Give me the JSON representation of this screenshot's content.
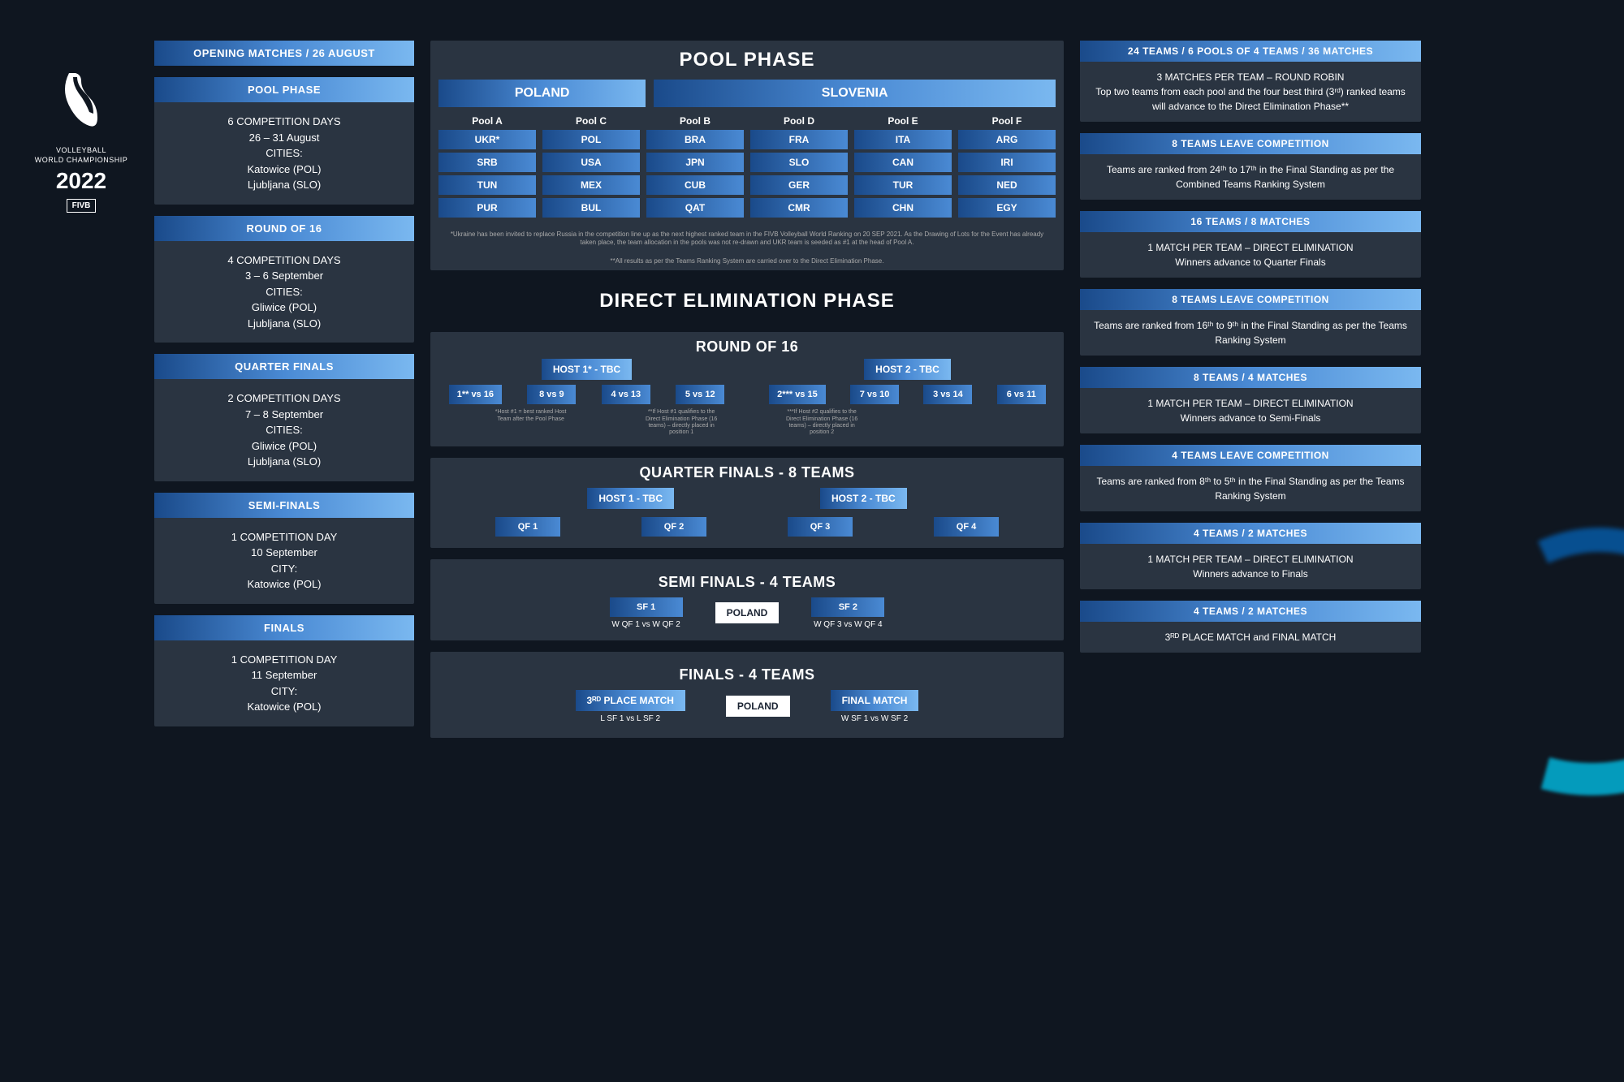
{
  "colors": {
    "bg": "#0f1620",
    "panel": "#2a3441",
    "grad_start": "#1a4a8a",
    "grad_mid": "#4a8ad4",
    "grad_end": "#7ab8f0",
    "glow": "#00d4ff"
  },
  "logo": {
    "line1": "VOLLEYBALL",
    "line2": "WORLD CHAMPIONSHIP",
    "year": "2022",
    "org": "FIVB"
  },
  "left": [
    {
      "h": "OPENING MATCHES / 26 AUGUST",
      "b": ""
    },
    {
      "h": "POOL PHASE",
      "b": "6 COMPETITION DAYS\n26 – 31 August\nCITIES:\nKatowice (POL)\nLjubljana (SLO)"
    },
    {
      "h": "ROUND OF 16",
      "b": "4 COMPETITION DAYS\n3 – 6 September\nCITIES:\nGliwice (POL)\nLjubljana (SLO)"
    },
    {
      "h": "QUARTER FINALS",
      "b": "2 COMPETITION DAYS\n7 – 8 September\nCITIES:\nGliwice (POL)\nLjubljana (SLO)"
    },
    {
      "h": "SEMI-FINALS",
      "b": "1 COMPETITION DAY\n10 September\nCITY:\nKatowice (POL)"
    },
    {
      "h": "FINALS",
      "b": "1 COMPETITION DAY\n11 September\nCITY:\nKatowice (POL)"
    }
  ],
  "right": [
    {
      "h": "24 TEAMS / 6 POOLS OF 4 TEAMS / 36 MATCHES",
      "b": "3 MATCHES PER TEAM – ROUND ROBIN\nTop two teams from each pool and the four best third (3ʳᵈ) ranked teams will advance to the Direct Elimination Phase**"
    },
    {
      "h": "8 TEAMS LEAVE COMPETITION",
      "b": "Teams are ranked from 24ᵗʰ to 17ᵗʰ in the Final Standing as per the Combined Teams Ranking System"
    },
    {
      "h": "16 TEAMS / 8 MATCHES",
      "b": "1 MATCH PER TEAM – DIRECT ELIMINATION\nWinners advance to Quarter Finals"
    },
    {
      "h": "8 TEAMS LEAVE COMPETITION",
      "b": "Teams are ranked from 16ᵗʰ to 9ᵗʰ in the Final Standing as per the Teams Ranking System"
    },
    {
      "h": "8 TEAMS / 4 MATCHES",
      "b": "1 MATCH PER TEAM – DIRECT ELIMINATION\nWinners advance to Semi-Finals"
    },
    {
      "h": "4 TEAMS LEAVE COMPETITION",
      "b": "Teams are ranked from 8ᵗʰ to 5ᵗʰ in the Final Standing as per the Teams Ranking System"
    },
    {
      "h": "4 TEAMS / 2 MATCHES",
      "b": "1 MATCH PER TEAM – DIRECT ELIMINATION\nWinners advance to Finals"
    },
    {
      "h": "4 TEAMS / 2 MATCHES",
      "b": "3ᴿᴰ PLACE MATCH and FINAL MATCH"
    }
  ],
  "pool": {
    "title": "POOL PHASE",
    "hosts": [
      "POLAND",
      "SLOVENIA"
    ],
    "host_split": [
      2,
      4
    ],
    "pools": [
      {
        "name": "Pool A",
        "teams": [
          "UKR*",
          "SRB",
          "TUN",
          "PUR"
        ]
      },
      {
        "name": "Pool C",
        "teams": [
          "POL",
          "USA",
          "MEX",
          "BUL"
        ]
      },
      {
        "name": "Pool B",
        "teams": [
          "BRA",
          "JPN",
          "CUB",
          "QAT"
        ]
      },
      {
        "name": "Pool D",
        "teams": [
          "FRA",
          "SLO",
          "GER",
          "CMR"
        ]
      },
      {
        "name": "Pool E",
        "teams": [
          "ITA",
          "CAN",
          "TUR",
          "CHN"
        ]
      },
      {
        "name": "Pool F",
        "teams": [
          "ARG",
          "IRI",
          "NED",
          "EGY"
        ]
      }
    ],
    "note1": "*Ukraine has been invited to replace Russia in the competition line up as the next highest ranked team in the FIVB Volleyball World Ranking on 20 SEP 2021. As the Drawing of Lots for the Event has already taken place, the team allocation in the pools was not re-drawn and UKR team is seeded as #1 at the head of Pool A.",
    "note2": "**All results as per the Teams Ranking System are carried over to the Direct Elimination Phase."
  },
  "elim": {
    "title": "DIRECT ELIMINATION PHASE",
    "r16": {
      "title": "ROUND OF 16",
      "host1": "HOST 1* - TBC",
      "host2": "HOST 2 - TBC",
      "m1": [
        "1** vs 16",
        "8 vs 9",
        "4 vs 13",
        "5 vs 12"
      ],
      "m2": [
        "2*** vs 15",
        "7 vs 10",
        "3 vs 14",
        "6 vs 11"
      ],
      "n1": "*Host #1 = best ranked Host Team after the Pool Phase",
      "n2": "**If Host #1 qualifies to the Direct Elimination Phase (16 teams) – directly placed in position 1",
      "n3": "***If Host #2 qualifies to the Direct Elimination Phase (16 teams) – directly placed in position 2"
    },
    "qf": {
      "title": "QUARTER FINALS - 8 TEAMS",
      "host1": "HOST 1 - TBC",
      "host2": "HOST 2 - TBC",
      "m": [
        "QF 1",
        "QF 2",
        "QF 3",
        "QF 4"
      ]
    },
    "sf": {
      "title": "SEMI FINALS - 4 TEAMS",
      "loc": "POLAND",
      "m": [
        "SF 1",
        "SF 2"
      ],
      "lbl": [
        "W QF 1 vs W QF 2",
        "W QF 3 vs W QF 4"
      ]
    },
    "fin": {
      "title": "FINALS - 4 TEAMS",
      "loc": "POLAND",
      "m": [
        "3ᴿᴰ PLACE MATCH",
        "FINAL MATCH"
      ],
      "lbl": [
        "L SF 1 vs L SF 2",
        "W SF 1 vs W SF 2"
      ]
    }
  }
}
